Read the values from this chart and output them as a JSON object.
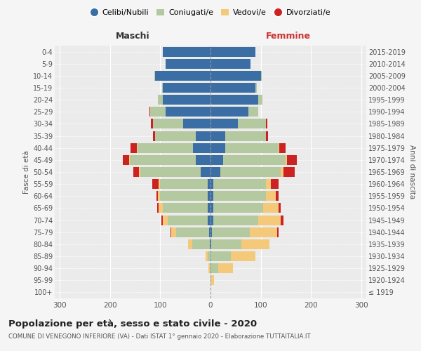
{
  "age_groups": [
    "100+",
    "95-99",
    "90-94",
    "85-89",
    "80-84",
    "75-79",
    "70-74",
    "65-69",
    "60-64",
    "55-59",
    "50-54",
    "45-49",
    "40-44",
    "35-39",
    "30-34",
    "25-29",
    "20-24",
    "15-19",
    "10-14",
    "5-9",
    "0-4"
  ],
  "birth_years": [
    "≤ 1919",
    "1920-1924",
    "1925-1929",
    "1930-1934",
    "1935-1939",
    "1940-1944",
    "1945-1949",
    "1950-1954",
    "1955-1959",
    "1960-1964",
    "1965-1969",
    "1970-1974",
    "1975-1979",
    "1980-1984",
    "1985-1989",
    "1990-1994",
    "1995-1999",
    "2000-2004",
    "2005-2009",
    "2010-2014",
    "2015-2019"
  ],
  "colors": {
    "celibi": "#3a6ea5",
    "coniugati": "#b5c9a0",
    "vedovi": "#f5c97a",
    "divorziati": "#cc2222"
  },
  "males": {
    "celibi": [
      0,
      0,
      0,
      0,
      2,
      3,
      5,
      5,
      5,
      6,
      20,
      30,
      35,
      30,
      55,
      90,
      95,
      95,
      110,
      90,
      95
    ],
    "coniugati": [
      0,
      0,
      2,
      5,
      35,
      65,
      80,
      90,
      95,
      95,
      120,
      130,
      110,
      80,
      60,
      30,
      10,
      2,
      2,
      0,
      0
    ],
    "vedovi": [
      0,
      0,
      2,
      5,
      8,
      10,
      10,
      8,
      5,
      3,
      2,
      2,
      2,
      0,
      0,
      0,
      0,
      0,
      0,
      0,
      0
    ],
    "divorziati": [
      0,
      0,
      0,
      0,
      0,
      2,
      3,
      3,
      3,
      12,
      12,
      12,
      12,
      5,
      3,
      2,
      0,
      0,
      0,
      0,
      0
    ]
  },
  "females": {
    "nubili": [
      0,
      0,
      0,
      0,
      2,
      3,
      5,
      5,
      5,
      5,
      20,
      25,
      30,
      30,
      55,
      75,
      95,
      90,
      100,
      80,
      90
    ],
    "coniugate": [
      0,
      2,
      15,
      40,
      60,
      75,
      90,
      100,
      105,
      105,
      120,
      125,
      105,
      80,
      55,
      20,
      8,
      2,
      2,
      0,
      0
    ],
    "vedove": [
      0,
      5,
      30,
      50,
      55,
      55,
      45,
      30,
      20,
      10,
      5,
      2,
      2,
      0,
      0,
      0,
      0,
      0,
      0,
      0,
      0
    ],
    "divorziate": [
      0,
      0,
      0,
      0,
      0,
      3,
      5,
      5,
      5,
      15,
      22,
      20,
      12,
      5,
      3,
      0,
      0,
      0,
      0,
      0,
      0
    ]
  },
  "title": "Popolazione per età, sesso e stato civile - 2020",
  "subtitle": "COMUNE DI VENEGONO INFERIORE (VA) - Dati ISTAT 1° gennaio 2020 - Elaborazione TUTTAITALIA.IT",
  "xlabel_left": "Maschi",
  "xlabel_right": "Femmine",
  "ylabel_left": "Fasce di età",
  "ylabel_right": "Anni di nascita",
  "xlim": 310,
  "bg_color": "#f5f5f5",
  "plot_bg": "#ebebeb",
  "legend_labels": [
    "Celibi/Nubili",
    "Coniugati/e",
    "Vedovi/e",
    "Divorziati/e"
  ],
  "legend_colors": [
    "#3a6ea5",
    "#b5c9a0",
    "#f5c97a",
    "#cc2222"
  ]
}
